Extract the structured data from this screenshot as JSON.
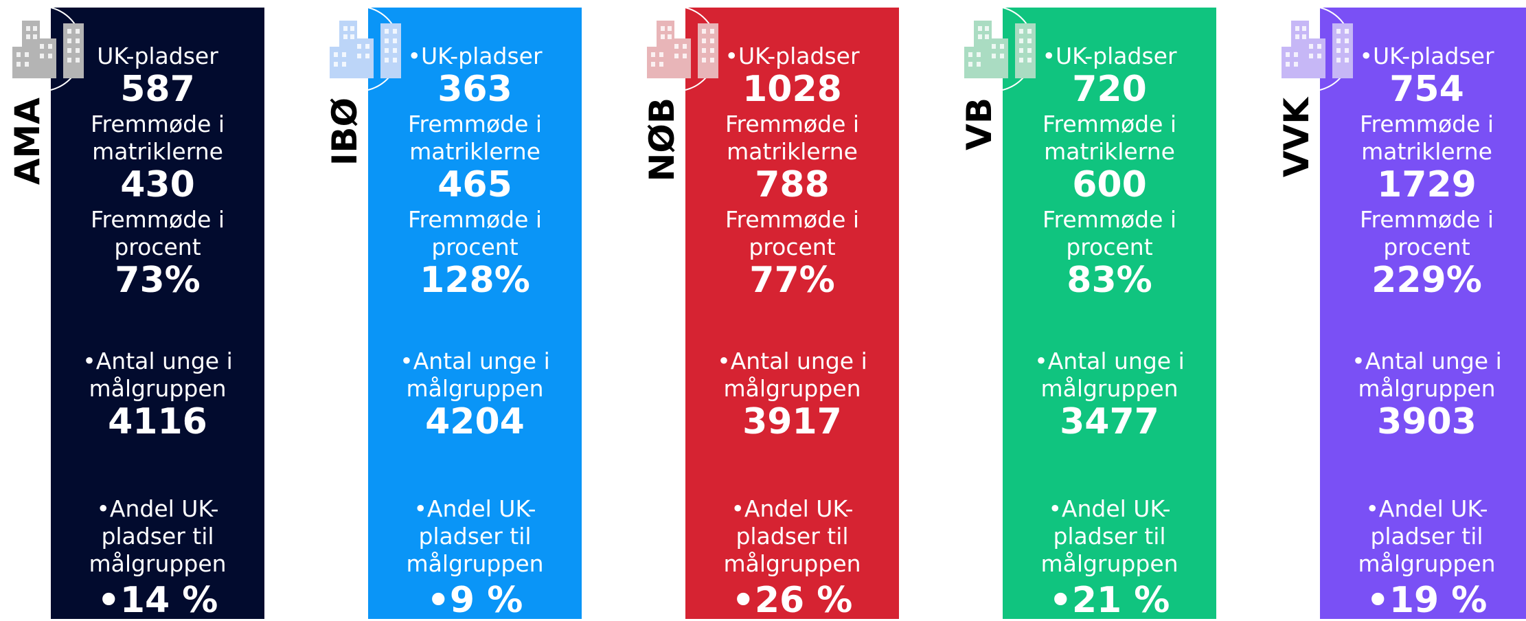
{
  "columns": [
    {
      "name": "AMA",
      "color": "#020b2e",
      "icon_color": "#b4b4b4",
      "items": [
        {
          "label": "UK-pladser",
          "value": "587"
        },
        {
          "label": "Fremmøde i matriklerne",
          "value": "430"
        },
        {
          "label": "Fremmøde i procent",
          "value": "73%"
        },
        {
          "label": "Antal unge i målgruppen",
          "value": "4116"
        },
        {
          "label": "Andel UK-pladser til målgruppen",
          "value": "14 %"
        }
      ]
    },
    {
      "name": "IBØ",
      "color": "#0a95f7",
      "icon_color": "#bcd5f8",
      "items": [
        {
          "label": "UK-pladser",
          "value": "363"
        },
        {
          "label": "Fremmøde i matriklerne",
          "value": "465"
        },
        {
          "label": "Fremmøde i procent",
          "value": "128%"
        },
        {
          "label": "Antal unge i målgruppen",
          "value": "4204"
        },
        {
          "label": "Andel UK-pladser til målgruppen",
          "value": "9 %"
        }
      ]
    },
    {
      "name": "NØB",
      "color": "#d62332",
      "icon_color": "#e8b5b8",
      "items": [
        {
          "label": "UK-pladser",
          "value": "1028"
        },
        {
          "label": "Fremmøde i matriklerne",
          "value": "788"
        },
        {
          "label": "Fremmøde i procent",
          "value": "77%"
        },
        {
          "label": "Antal unge i målgruppen",
          "value": "3917"
        },
        {
          "label": "Andel UK-pladser til målgruppen",
          "value": "26 %"
        }
      ]
    },
    {
      "name": "VB",
      "color": "#10c47f",
      "icon_color": "#aadcc2",
      "items": [
        {
          "label": "UK-pladser",
          "value": "720"
        },
        {
          "label": "Fremmøde i matriklerne",
          "value": "600"
        },
        {
          "label": "Fremmøde i procent",
          "value": "83%"
        },
        {
          "label": "Antal unge i målgruppen",
          "value": "3477"
        },
        {
          "label": "Andel UK-pladser til målgruppen",
          "value": "21 %"
        }
      ]
    },
    {
      "name": "VVK",
      "color": "#7a50f5",
      "icon_color": "#c6b7f6",
      "items": [
        {
          "label": "UK-pladser",
          "value": "754"
        },
        {
          "label": "Fremmøde i matriklerne",
          "value": "1729"
        },
        {
          "label": "Fremmøde i procent",
          "value": "229%"
        },
        {
          "label": "Antal unge i målgruppen",
          "value": "3903"
        },
        {
          "label": "Andel UK-pladser til målgruppen",
          "value": "19 %"
        }
      ]
    }
  ]
}
